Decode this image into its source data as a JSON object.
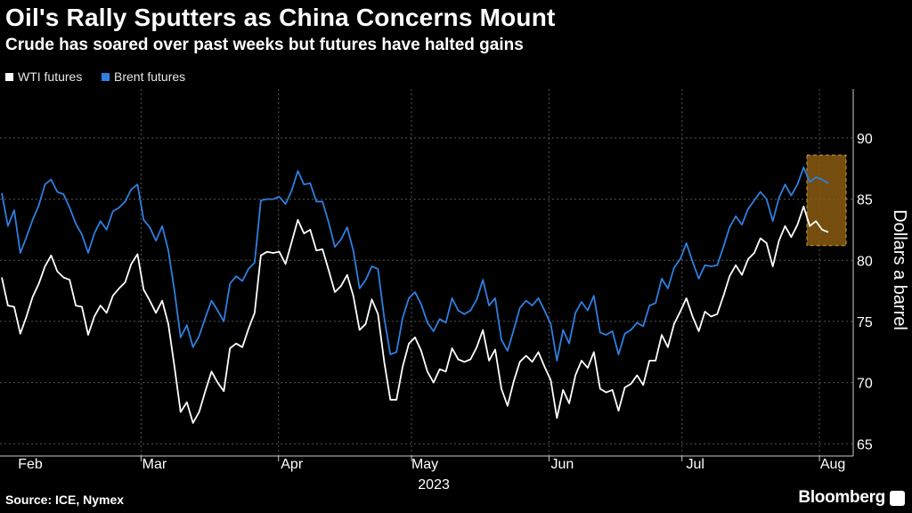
{
  "title": "Oil's Rally Sputters as China Concerns Mount",
  "subtitle": "Crude has soared over past weeks but futures have halted gains",
  "legend": [
    {
      "label": "WTI futures",
      "color": "#ffffff"
    },
    {
      "label": "Brent futures",
      "color": "#2f7fe0"
    }
  ],
  "source": "Source: ICE, Nymex",
  "brand": "Bloomberg",
  "chart_data": {
    "type": "line",
    "ylabel": "Dollars a barrel",
    "ylim": [
      64,
      94
    ],
    "yticks": [
      65,
      70,
      75,
      80,
      85,
      90
    ],
    "grid": true,
    "x_start": "2023-02-01",
    "x_end": "2023-08-04",
    "xtick_labels": [
      {
        "label": "Feb",
        "date": "2023-02-01"
      },
      {
        "label": "Mar",
        "date": "2023-03-01"
      },
      {
        "label": "Apr",
        "date": "2023-04-01"
      },
      {
        "label": "May",
        "date": "2023-05-01"
      },
      {
        "label": "Jun",
        "date": "2023-06-01"
      },
      {
        "label": "Jul",
        "date": "2023-07-01"
      },
      {
        "label": "Aug",
        "date": "2023-08-01"
      }
    ],
    "year_label": "2023",
    "highlight": {
      "from": "2023-07-28",
      "to": "2023-08-04",
      "ymin": 81.2,
      "ymax": 88.6,
      "color": "#8a5a10"
    },
    "series": [
      {
        "name": "WTI futures",
        "color": "#ffffff",
        "points": [
          [
            "2023-02-01",
            78.6
          ],
          [
            "2023-02-02",
            76.3
          ],
          [
            "2023-02-03",
            76.2
          ],
          [
            "2023-02-06",
            74.0
          ],
          [
            "2023-02-07",
            75.4
          ],
          [
            "2023-02-08",
            77.0
          ],
          [
            "2023-02-09",
            78.1
          ],
          [
            "2023-02-10",
            79.5
          ],
          [
            "2023-02-13",
            80.4
          ],
          [
            "2023-02-14",
            79.1
          ],
          [
            "2023-02-15",
            78.6
          ],
          [
            "2023-02-16",
            78.4
          ],
          [
            "2023-02-17",
            76.3
          ],
          [
            "2023-02-21",
            76.2
          ],
          [
            "2023-02-22",
            73.9
          ],
          [
            "2023-02-23",
            75.4
          ],
          [
            "2023-02-24",
            76.3
          ],
          [
            "2023-02-27",
            75.7
          ],
          [
            "2023-02-28",
            77.1
          ],
          [
            "2023-03-01",
            77.7
          ],
          [
            "2023-03-02",
            78.2
          ],
          [
            "2023-03-03",
            79.7
          ],
          [
            "2023-03-06",
            80.5
          ],
          [
            "2023-03-07",
            77.6
          ],
          [
            "2023-03-08",
            76.7
          ],
          [
            "2023-03-09",
            75.7
          ],
          [
            "2023-03-10",
            76.7
          ],
          [
            "2023-03-13",
            74.8
          ],
          [
            "2023-03-14",
            71.3
          ],
          [
            "2023-03-15",
            67.6
          ],
          [
            "2023-03-16",
            68.4
          ],
          [
            "2023-03-17",
            66.7
          ],
          [
            "2023-03-20",
            67.6
          ],
          [
            "2023-03-21",
            69.3
          ],
          [
            "2023-03-22",
            70.9
          ],
          [
            "2023-03-23",
            70.0
          ],
          [
            "2023-03-24",
            69.3
          ],
          [
            "2023-03-27",
            72.8
          ],
          [
            "2023-03-28",
            73.2
          ],
          [
            "2023-03-29",
            72.9
          ],
          [
            "2023-03-30",
            74.4
          ],
          [
            "2023-03-31",
            75.7
          ],
          [
            "2023-04-03",
            80.4
          ],
          [
            "2023-04-04",
            80.7
          ],
          [
            "2023-04-05",
            80.6
          ],
          [
            "2023-04-06",
            80.7
          ],
          [
            "2023-04-10",
            79.7
          ],
          [
            "2023-04-11",
            81.5
          ],
          [
            "2023-04-12",
            83.3
          ],
          [
            "2023-04-13",
            82.2
          ],
          [
            "2023-04-14",
            82.5
          ],
          [
            "2023-04-17",
            80.8
          ],
          [
            "2023-04-18",
            80.9
          ],
          [
            "2023-04-19",
            79.2
          ],
          [
            "2023-04-20",
            77.4
          ],
          [
            "2023-04-21",
            77.9
          ],
          [
            "2023-04-24",
            78.8
          ],
          [
            "2023-04-25",
            77.1
          ],
          [
            "2023-04-26",
            74.3
          ],
          [
            "2023-04-27",
            74.8
          ],
          [
            "2023-04-28",
            76.8
          ],
          [
            "2023-05-01",
            75.6
          ],
          [
            "2023-05-02",
            71.7
          ],
          [
            "2023-05-03",
            68.6
          ],
          [
            "2023-05-04",
            68.6
          ],
          [
            "2023-05-05",
            71.3
          ],
          [
            "2023-05-08",
            73.2
          ],
          [
            "2023-05-09",
            73.7
          ],
          [
            "2023-05-10",
            72.6
          ],
          [
            "2023-05-11",
            70.9
          ],
          [
            "2023-05-12",
            70.0
          ],
          [
            "2023-05-15",
            71.1
          ],
          [
            "2023-05-16",
            70.9
          ],
          [
            "2023-05-17",
            72.8
          ],
          [
            "2023-05-18",
            71.9
          ],
          [
            "2023-05-19",
            71.7
          ],
          [
            "2023-05-22",
            71.9
          ],
          [
            "2023-05-23",
            72.9
          ],
          [
            "2023-05-24",
            74.3
          ],
          [
            "2023-05-25",
            71.8
          ],
          [
            "2023-05-26",
            72.7
          ],
          [
            "2023-05-30",
            69.5
          ],
          [
            "2023-05-31",
            68.1
          ],
          [
            "2023-06-01",
            70.1
          ],
          [
            "2023-06-02",
            71.7
          ],
          [
            "2023-06-05",
            72.2
          ],
          [
            "2023-06-06",
            71.7
          ],
          [
            "2023-06-07",
            72.5
          ],
          [
            "2023-06-08",
            71.3
          ],
          [
            "2023-06-09",
            70.2
          ],
          [
            "2023-06-12",
            67.1
          ],
          [
            "2023-06-13",
            69.4
          ],
          [
            "2023-06-14",
            68.3
          ],
          [
            "2023-06-15",
            70.6
          ],
          [
            "2023-06-16",
            71.8
          ],
          [
            "2023-06-20",
            71.2
          ],
          [
            "2023-06-21",
            72.5
          ],
          [
            "2023-06-22",
            69.5
          ],
          [
            "2023-06-23",
            69.2
          ],
          [
            "2023-06-26",
            69.4
          ],
          [
            "2023-06-27",
            67.7
          ],
          [
            "2023-06-28",
            69.6
          ],
          [
            "2023-06-29",
            69.9
          ],
          [
            "2023-06-30",
            70.6
          ],
          [
            "2023-07-03",
            69.8
          ],
          [
            "2023-07-05",
            71.8
          ],
          [
            "2023-07-06",
            71.8
          ],
          [
            "2023-07-07",
            73.9
          ],
          [
            "2023-07-10",
            72.9
          ],
          [
            "2023-07-11",
            74.8
          ],
          [
            "2023-07-12",
            75.8
          ],
          [
            "2023-07-13",
            76.9
          ],
          [
            "2023-07-14",
            75.4
          ],
          [
            "2023-07-17",
            74.2
          ],
          [
            "2023-07-18",
            75.8
          ],
          [
            "2023-07-19",
            75.4
          ],
          [
            "2023-07-20",
            75.6
          ],
          [
            "2023-07-21",
            77.1
          ],
          [
            "2023-07-24",
            78.7
          ],
          [
            "2023-07-25",
            79.6
          ],
          [
            "2023-07-26",
            78.8
          ],
          [
            "2023-07-27",
            80.1
          ],
          [
            "2023-07-28",
            80.6
          ],
          [
            "2023-07-31",
            81.8
          ],
          [
            "2023-08-01",
            81.4
          ],
          [
            "2023-08-02",
            79.5
          ],
          [
            "2023-08-03",
            81.6
          ],
          [
            "2023-08-04",
            82.8
          ],
          [
            "2023-08-07",
            81.9
          ],
          [
            "2023-08-08",
            82.9
          ],
          [
            "2023-08-09",
            84.4
          ],
          [
            "2023-08-10",
            82.8
          ],
          [
            "2023-08-11",
            83.2
          ],
          [
            "2023-08-14",
            82.5
          ],
          [
            "2023-08-15",
            82.3
          ]
        ]
      },
      {
        "name": "Brent futures",
        "color": "#2f7fe0",
        "points": [
          [
            "2023-02-01",
            85.5
          ],
          [
            "2023-02-02",
            82.8
          ],
          [
            "2023-02-03",
            84.1
          ],
          [
            "2023-02-06",
            80.6
          ],
          [
            "2023-02-07",
            81.9
          ],
          [
            "2023-02-08",
            83.3
          ],
          [
            "2023-02-09",
            84.5
          ],
          [
            "2023-02-10",
            86.2
          ],
          [
            "2023-02-13",
            86.6
          ],
          [
            "2023-02-14",
            85.6
          ],
          [
            "2023-02-15",
            85.4
          ],
          [
            "2023-02-16",
            84.3
          ],
          [
            "2023-02-17",
            83.0
          ],
          [
            "2023-02-21",
            82.1
          ],
          [
            "2023-02-22",
            80.6
          ],
          [
            "2023-02-23",
            82.2
          ],
          [
            "2023-02-24",
            83.2
          ],
          [
            "2023-02-27",
            82.5
          ],
          [
            "2023-02-28",
            84.0
          ],
          [
            "2023-03-01",
            84.3
          ],
          [
            "2023-03-02",
            84.8
          ],
          [
            "2023-03-03",
            85.8
          ],
          [
            "2023-03-06",
            86.2
          ],
          [
            "2023-03-07",
            83.3
          ],
          [
            "2023-03-08",
            82.7
          ],
          [
            "2023-03-09",
            81.6
          ],
          [
            "2023-03-10",
            82.8
          ],
          [
            "2023-03-13",
            80.8
          ],
          [
            "2023-03-14",
            77.5
          ],
          [
            "2023-03-15",
            73.7
          ],
          [
            "2023-03-16",
            74.7
          ],
          [
            "2023-03-17",
            72.9
          ],
          [
            "2023-03-20",
            73.8
          ],
          [
            "2023-03-21",
            75.3
          ],
          [
            "2023-03-22",
            76.7
          ],
          [
            "2023-03-23",
            75.9
          ],
          [
            "2023-03-24",
            75.0
          ],
          [
            "2023-03-27",
            78.1
          ],
          [
            "2023-03-28",
            78.7
          ],
          [
            "2023-03-29",
            78.3
          ],
          [
            "2023-03-30",
            79.3
          ],
          [
            "2023-03-31",
            79.8
          ],
          [
            "2023-04-03",
            84.9
          ],
          [
            "2023-04-04",
            85.0
          ],
          [
            "2023-04-05",
            85.0
          ],
          [
            "2023-04-06",
            85.2
          ],
          [
            "2023-04-10",
            84.6
          ],
          [
            "2023-04-11",
            85.7
          ],
          [
            "2023-04-12",
            87.3
          ],
          [
            "2023-04-13",
            86.2
          ],
          [
            "2023-04-14",
            86.3
          ],
          [
            "2023-04-17",
            84.8
          ],
          [
            "2023-04-18",
            84.8
          ],
          [
            "2023-04-19",
            83.1
          ],
          [
            "2023-04-20",
            81.1
          ],
          [
            "2023-04-21",
            81.7
          ],
          [
            "2023-04-24",
            82.7
          ],
          [
            "2023-04-25",
            80.8
          ],
          [
            "2023-04-26",
            77.7
          ],
          [
            "2023-04-27",
            78.4
          ],
          [
            "2023-04-28",
            79.5
          ],
          [
            "2023-05-01",
            79.3
          ],
          [
            "2023-05-02",
            75.3
          ],
          [
            "2023-05-03",
            72.3
          ],
          [
            "2023-05-04",
            72.5
          ],
          [
            "2023-05-05",
            75.3
          ],
          [
            "2023-05-08",
            76.9
          ],
          [
            "2023-05-09",
            77.4
          ],
          [
            "2023-05-10",
            76.4
          ],
          [
            "2023-05-11",
            74.9
          ],
          [
            "2023-05-12",
            74.2
          ],
          [
            "2023-05-15",
            75.2
          ],
          [
            "2023-05-16",
            74.9
          ],
          [
            "2023-05-17",
            76.9
          ],
          [
            "2023-05-18",
            75.9
          ],
          [
            "2023-05-19",
            75.6
          ],
          [
            "2023-05-22",
            75.9
          ],
          [
            "2023-05-23",
            76.8
          ],
          [
            "2023-05-24",
            78.4
          ],
          [
            "2023-05-25",
            76.3
          ],
          [
            "2023-05-26",
            76.9
          ],
          [
            "2023-05-30",
            73.5
          ],
          [
            "2023-05-31",
            72.6
          ],
          [
            "2023-06-01",
            74.3
          ],
          [
            "2023-06-02",
            76.1
          ],
          [
            "2023-06-05",
            76.7
          ],
          [
            "2023-06-06",
            76.3
          ],
          [
            "2023-06-07",
            76.9
          ],
          [
            "2023-06-08",
            75.9
          ],
          [
            "2023-06-09",
            74.8
          ],
          [
            "2023-06-12",
            71.8
          ],
          [
            "2023-06-13",
            74.3
          ],
          [
            "2023-06-14",
            73.2
          ],
          [
            "2023-06-15",
            75.7
          ],
          [
            "2023-06-16",
            76.6
          ],
          [
            "2023-06-20",
            75.9
          ],
          [
            "2023-06-21",
            77.1
          ],
          [
            "2023-06-22",
            74.1
          ],
          [
            "2023-06-23",
            73.9
          ],
          [
            "2023-06-26",
            74.2
          ],
          [
            "2023-06-27",
            72.3
          ],
          [
            "2023-06-28",
            74.0
          ],
          [
            "2023-06-29",
            74.3
          ],
          [
            "2023-06-30",
            74.9
          ],
          [
            "2023-07-03",
            74.6
          ],
          [
            "2023-07-05",
            76.3
          ],
          [
            "2023-07-06",
            76.5
          ],
          [
            "2023-07-07",
            78.5
          ],
          [
            "2023-07-10",
            77.7
          ],
          [
            "2023-07-11",
            79.4
          ],
          [
            "2023-07-12",
            80.1
          ],
          [
            "2023-07-13",
            81.4
          ],
          [
            "2023-07-14",
            79.9
          ],
          [
            "2023-07-17",
            78.5
          ],
          [
            "2023-07-18",
            79.6
          ],
          [
            "2023-07-19",
            79.5
          ],
          [
            "2023-07-20",
            79.6
          ],
          [
            "2023-07-21",
            81.1
          ],
          [
            "2023-07-24",
            82.7
          ],
          [
            "2023-07-25",
            83.6
          ],
          [
            "2023-07-26",
            82.9
          ],
          [
            "2023-07-27",
            84.2
          ],
          [
            "2023-07-28",
            84.9
          ],
          [
            "2023-07-31",
            85.6
          ],
          [
            "2023-08-01",
            85.0
          ],
          [
            "2023-08-02",
            83.2
          ],
          [
            "2023-08-03",
            85.1
          ],
          [
            "2023-08-04",
            86.2
          ],
          [
            "2023-08-07",
            85.3
          ],
          [
            "2023-08-08",
            86.2
          ],
          [
            "2023-08-09",
            87.6
          ],
          [
            "2023-08-10",
            86.4
          ],
          [
            "2023-08-11",
            86.8
          ],
          [
            "2023-08-14",
            86.6
          ],
          [
            "2023-08-15",
            86.3
          ]
        ]
      }
    ]
  }
}
